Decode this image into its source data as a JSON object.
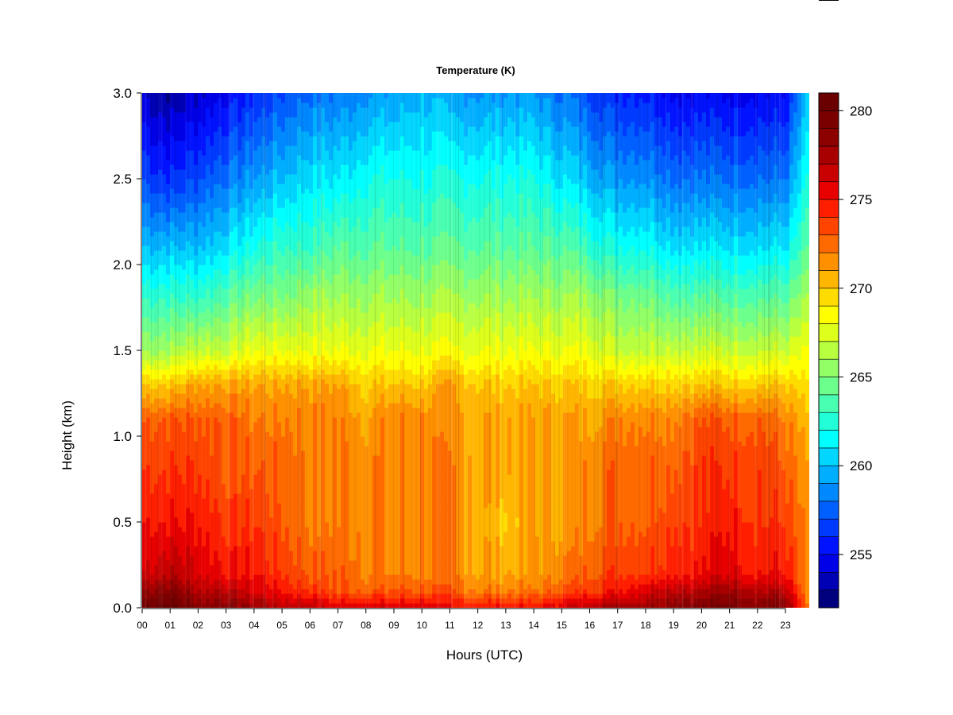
{
  "chart_data": {
    "type": "heatmap",
    "title": "Temperature (K)",
    "xlabel": "Hours (UTC)",
    "ylabel": "Height (km)",
    "x_ticks": [
      "00",
      "01",
      "02",
      "03",
      "04",
      "05",
      "06",
      "07",
      "08",
      "09",
      "10",
      "11",
      "12",
      "13",
      "14",
      "15",
      "16",
      "17",
      "18",
      "19",
      "20",
      "21",
      "22",
      "23"
    ],
    "y_ticks": [
      "0.0",
      "0.5",
      "1.0",
      "1.5",
      "2.0",
      "2.5",
      "3.0"
    ],
    "xlim": [
      0,
      23.85
    ],
    "ylim": [
      0,
      3.0
    ],
    "colorbar": {
      "ticks": [
        "255",
        "260",
        "265",
        "270",
        "275",
        "280"
      ],
      "range": [
        252,
        281
      ],
      "levels": 29,
      "colors": [
        "#00007f",
        "#0000b4",
        "#0000e8",
        "#0012ff",
        "#003aff",
        "#0060ff",
        "#0088ff",
        "#00aeff",
        "#00d6ff",
        "#00ffff",
        "#22ffd8",
        "#48ffb2",
        "#6cff8c",
        "#92ff66",
        "#b8ff40",
        "#deff1c",
        "#ffff00",
        "#ffdc00",
        "#ffb600",
        "#ff9000",
        "#ff6a00",
        "#ff4400",
        "#ff1f00",
        "#e80000",
        "#c80000",
        "#a80000",
        "#8c0000",
        "#7a0000",
        "#6a0000"
      ]
    },
    "data": {
      "x_hours": [
        0,
        1,
        2,
        3,
        4,
        5,
        6,
        7,
        8,
        9,
        10,
        11,
        12,
        13,
        14,
        15,
        16,
        17,
        18,
        19,
        20,
        21,
        22,
        23,
        23.8
      ],
      "y_km": [
        0.0,
        0.1,
        0.2,
        0.5,
        0.8,
        1.1,
        1.3,
        1.5,
        1.8,
        2.1,
        2.5,
        3.0
      ],
      "temperature_K": [
        [
          280,
          281,
          279,
          279,
          278,
          277,
          277,
          276,
          276,
          276,
          276,
          275,
          275,
          275,
          275,
          276,
          277,
          278,
          278,
          279,
          279,
          280,
          279,
          279,
          272
        ],
        [
          278,
          279,
          277,
          277,
          276,
          275,
          274,
          273,
          273,
          273,
          273,
          273,
          272,
          272,
          272,
          273,
          274,
          275,
          276,
          277,
          277,
          278,
          277,
          277,
          271
        ],
        [
          276,
          277,
          276,
          275,
          275,
          274,
          273,
          273,
          272,
          272,
          272,
          272,
          271,
          271,
          271,
          272,
          273,
          274,
          274,
          275,
          275,
          276,
          275,
          275,
          271
        ],
        [
          275,
          275,
          275,
          274,
          274,
          273,
          272,
          272,
          272,
          272,
          272,
          272,
          271,
          270,
          271,
          271,
          272,
          273,
          273,
          274,
          274,
          275,
          274,
          274,
          271
        ],
        [
          274,
          274,
          274,
          273,
          273,
          273,
          272,
          272,
          272,
          272,
          272,
          272,
          271,
          271,
          271,
          271,
          272,
          273,
          273,
          273,
          274,
          274,
          274,
          273,
          271
        ],
        [
          273,
          273,
          273,
          273,
          272,
          272,
          272,
          272,
          271,
          272,
          272,
          271,
          271,
          271,
          271,
          271,
          271,
          272,
          272,
          272,
          273,
          273,
          273,
          272,
          270
        ],
        [
          270,
          270,
          271,
          271,
          271,
          271,
          271,
          271,
          270,
          270,
          270,
          271,
          270,
          270,
          270,
          270,
          270,
          270,
          270,
          270,
          270,
          270,
          270,
          270,
          269
        ],
        [
          266,
          266,
          267,
          267,
          268,
          268,
          268,
          268,
          268,
          268,
          268,
          268,
          268,
          268,
          268,
          268,
          268,
          267,
          267,
          267,
          267,
          267,
          267,
          267,
          268
        ],
        [
          263,
          263,
          263,
          264,
          265,
          265,
          266,
          266,
          266,
          266,
          266,
          266,
          266,
          266,
          266,
          266,
          266,
          265,
          265,
          264,
          264,
          264,
          264,
          264,
          266
        ],
        [
          260,
          260,
          260,
          261,
          262,
          263,
          263,
          264,
          264,
          264,
          264,
          264,
          264,
          264,
          264,
          264,
          263,
          262,
          262,
          261,
          261,
          261,
          261,
          261,
          264
        ],
        [
          257,
          256,
          257,
          258,
          259,
          260,
          261,
          261,
          262,
          262,
          262,
          262,
          262,
          262,
          262,
          261,
          260,
          259,
          259,
          258,
          258,
          258,
          258,
          258,
          262
        ],
        [
          254,
          253,
          254,
          255,
          256,
          257,
          258,
          258,
          259,
          259,
          260,
          259,
          259,
          259,
          259,
          258,
          257,
          256,
          256,
          255,
          255,
          255,
          255,
          255,
          260
        ]
      ]
    }
  }
}
